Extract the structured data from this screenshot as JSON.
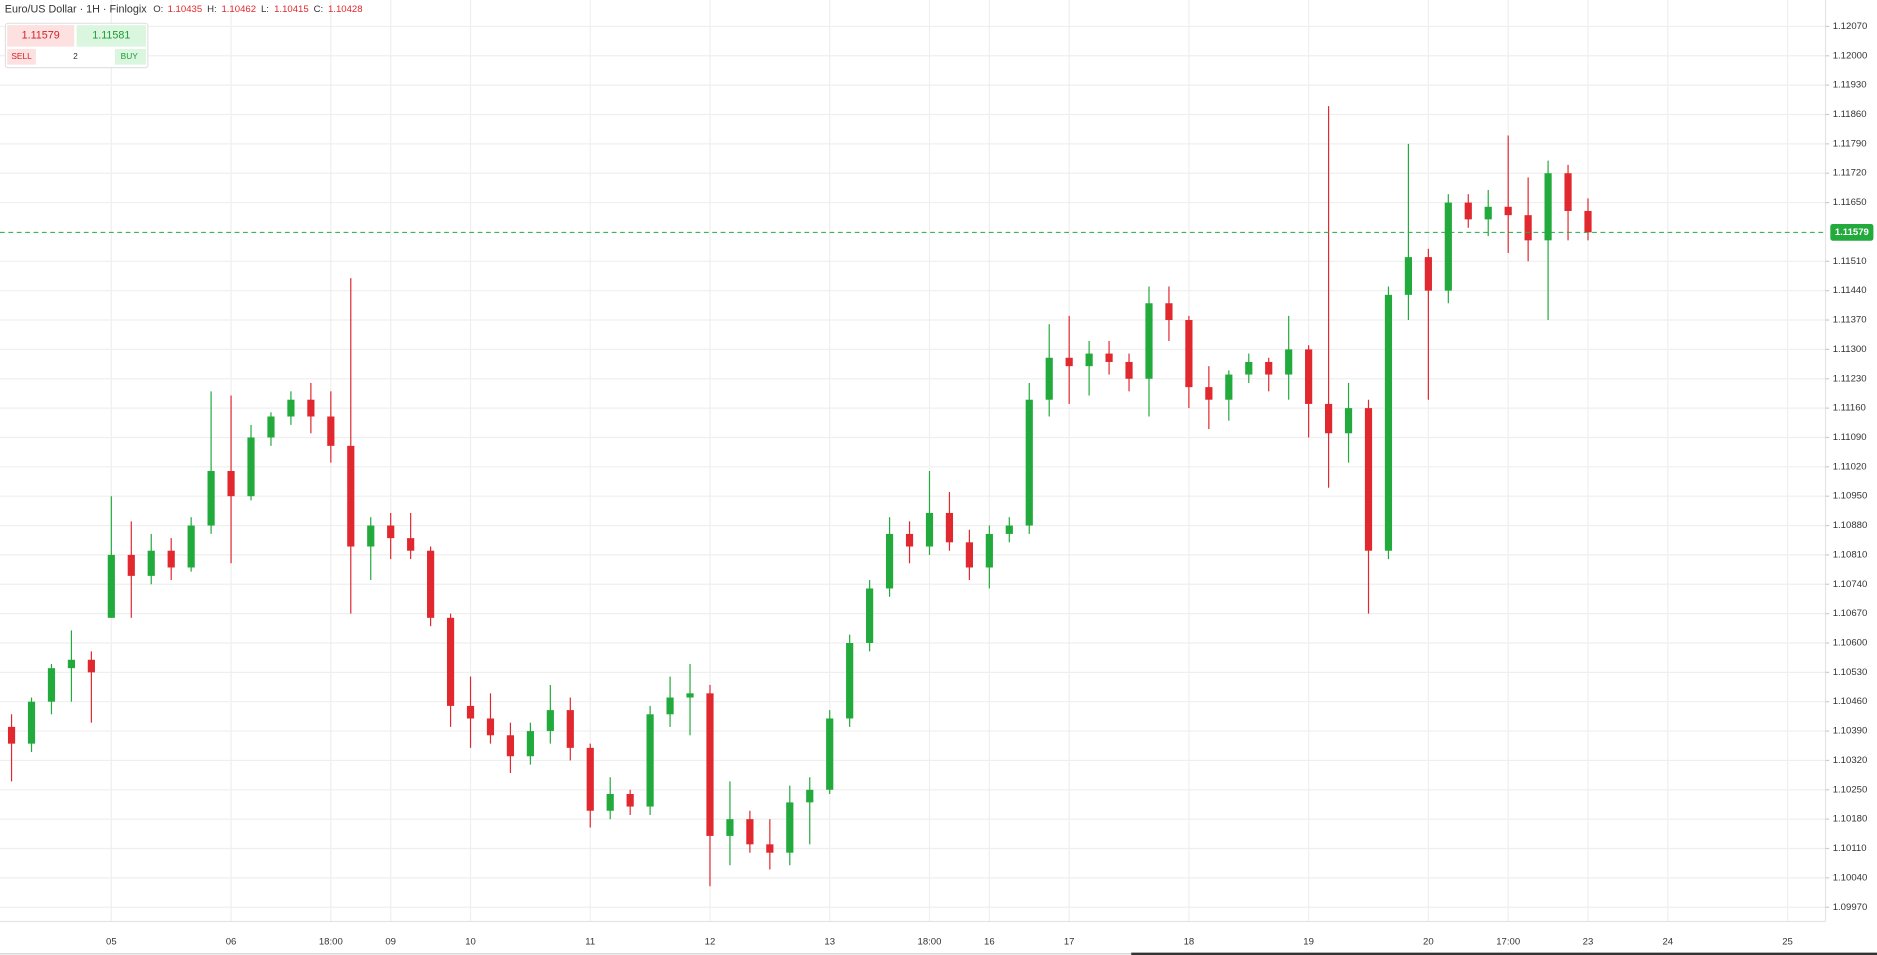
{
  "header": {
    "title": "Euro/US Dollar · 1H · Finlogix",
    "o_label": "O:",
    "o": 1.10435,
    "h_label": "H:",
    "h": 1.10462,
    "l_label": "L:",
    "l": 1.10415,
    "c_label": "C:",
    "c": 1.10428
  },
  "trade": {
    "bid": 1.11579,
    "ask": 1.11581,
    "sell": "SELL",
    "quantity": 2,
    "buy": "BUY"
  },
  "chart_data": {
    "type": "candlestick",
    "up_color": "#22ab3c",
    "down_color": "#e0282e",
    "grid": true,
    "last_price": 1.11579,
    "last_price_color": "#22ab3c",
    "categories": [
      null,
      null,
      null,
      null,
      null,
      "05",
      null,
      null,
      null,
      null,
      null,
      "06",
      null,
      null,
      null,
      null,
      "18:00",
      null,
      null,
      "09",
      null,
      null,
      null,
      "10",
      null,
      null,
      null,
      null,
      null,
      "11",
      null,
      null,
      null,
      null,
      null,
      "12",
      null,
      null,
      null,
      null,
      null,
      "13",
      null,
      null,
      null,
      null,
      "18:00",
      null,
      null,
      "16",
      null,
      null,
      null,
      "17",
      null,
      null,
      null,
      null,
      null,
      "18",
      null,
      null,
      null,
      null,
      null,
      "19",
      null,
      null,
      null,
      null,
      null,
      "20",
      null,
      null,
      null,
      "17:00",
      null,
      null,
      null,
      "23",
      null,
      null,
      null,
      "24",
      null,
      null,
      null,
      null,
      null,
      "25",
      null
    ],
    "open": [
      1.104,
      1.1036,
      1.1046,
      1.1054,
      1.1056,
      1.1066,
      1.1081,
      1.1076,
      1.1082,
      1.1078,
      1.1088,
      1.1101,
      1.1095,
      1.1109,
      1.1114,
      1.1118,
      1.1114,
      1.1107,
      1.1083,
      1.1088,
      1.1085,
      1.1082,
      1.1066,
      1.1045,
      1.1042,
      1.1038,
      1.1033,
      1.1039,
      1.1044,
      1.1035,
      1.102,
      1.1024,
      1.1021,
      1.1043,
      1.1047,
      1.1048,
      1.1014,
      1.1018,
      1.1012,
      1.101,
      1.1022,
      1.1025,
      1.1042,
      1.106,
      1.1073,
      1.1086,
      1.1083,
      1.1091,
      1.1084,
      1.1078,
      1.1086,
      1.1088,
      1.1118,
      1.1128,
      1.1126,
      1.1129,
      1.1127,
      1.1123,
      1.1141,
      1.1137,
      1.1121,
      1.1118,
      1.1124,
      1.1127,
      1.1124,
      1.113,
      1.1117,
      1.111,
      1.1116,
      1.1082,
      1.1143,
      1.1152,
      1.1144,
      1.1165,
      1.1161,
      1.1164,
      1.1162,
      1.1156,
      1.1172,
      1.1163,
      null,
      null,
      null,
      null,
      null,
      null,
      null,
      null,
      null,
      null,
      null
    ],
    "high": [
      1.1043,
      1.1047,
      1.1055,
      1.1063,
      1.1058,
      1.1095,
      1.1089,
      1.1086,
      1.1085,
      1.109,
      1.112,
      1.1119,
      1.1112,
      1.1115,
      1.112,
      1.1122,
      1.112,
      1.1147,
      1.109,
      1.1091,
      1.1091,
      1.1083,
      1.1067,
      1.1052,
      1.1048,
      1.1041,
      1.1041,
      1.105,
      1.1047,
      1.1036,
      1.1028,
      1.1025,
      1.1045,
      1.1052,
      1.1055,
      1.105,
      1.1027,
      1.102,
      1.1018,
      1.1026,
      1.1028,
      1.1044,
      1.1062,
      1.1075,
      1.109,
      1.1089,
      1.1101,
      1.1096,
      1.1087,
      1.1088,
      1.109,
      1.1122,
      1.1136,
      1.1138,
      1.1132,
      1.1132,
      1.1129,
      1.1145,
      1.1145,
      1.1138,
      1.1126,
      1.1125,
      1.1129,
      1.1128,
      1.1138,
      1.1131,
      1.1188,
      1.1122,
      1.1118,
      1.1145,
      1.1179,
      1.1154,
      1.1167,
      1.1167,
      1.1168,
      1.1181,
      1.1171,
      1.1175,
      1.1174,
      1.1166,
      null,
      null,
      null,
      null,
      null,
      null,
      null,
      null,
      null,
      null,
      null
    ],
    "low": [
      1.1027,
      1.1034,
      1.1043,
      1.1046,
      1.1041,
      1.1066,
      1.1066,
      1.1074,
      1.1075,
      1.1077,
      1.1086,
      1.1079,
      1.1094,
      1.1107,
      1.1112,
      1.111,
      1.1103,
      1.1067,
      1.1075,
      1.108,
      1.108,
      1.1064,
      1.104,
      1.1035,
      1.1036,
      1.1029,
      1.1031,
      1.1036,
      1.1032,
      1.1016,
      1.1018,
      1.1019,
      1.1019,
      1.104,
      1.1038,
      1.1002,
      1.1007,
      1.101,
      1.1006,
      1.1007,
      1.1012,
      1.1024,
      1.104,
      1.1058,
      1.1071,
      1.1079,
      1.1081,
      1.1082,
      1.1075,
      1.1073,
      1.1084,
      1.1086,
      1.1114,
      1.1117,
      1.1119,
      1.1124,
      1.112,
      1.1114,
      1.1132,
      1.1116,
      1.1111,
      1.1113,
      1.1122,
      1.112,
      1.1118,
      1.1109,
      1.1097,
      1.1103,
      1.1067,
      1.108,
      1.1137,
      1.1118,
      1.1141,
      1.1159,
      1.1157,
      1.1153,
      1.1151,
      1.1137,
      1.1156,
      1.1156,
      null,
      null,
      null,
      null,
      null,
      null,
      null,
      null,
      null,
      null,
      null
    ],
    "close": [
      1.1036,
      1.1046,
      1.1054,
      1.1056,
      1.1053,
      1.1081,
      1.1076,
      1.1082,
      1.1078,
      1.1088,
      1.1101,
      1.1095,
      1.1109,
      1.1114,
      1.1118,
      1.1114,
      1.1107,
      1.1083,
      1.1088,
      1.1085,
      1.1082,
      1.1066,
      1.1045,
      1.1042,
      1.1038,
      1.1033,
      1.1039,
      1.1044,
      1.1035,
      1.102,
      1.1024,
      1.1021,
      1.1043,
      1.1047,
      1.1048,
      1.1014,
      1.1018,
      1.1012,
      1.101,
      1.1022,
      1.1025,
      1.1042,
      1.106,
      1.1073,
      1.1086,
      1.1083,
      1.1091,
      1.1084,
      1.1078,
      1.1086,
      1.1088,
      1.1118,
      1.1128,
      1.1126,
      1.1129,
      1.1127,
      1.1123,
      1.1141,
      1.1137,
      1.1121,
      1.1118,
      1.1124,
      1.1127,
      1.1124,
      1.113,
      1.1117,
      1.111,
      1.1116,
      1.1082,
      1.1143,
      1.1152,
      1.1144,
      1.1165,
      1.1161,
      1.1164,
      1.1162,
      1.1156,
      1.1172,
      1.1163,
      1.11579,
      null,
      null,
      null,
      null,
      null,
      null,
      null,
      null,
      null,
      null,
      null
    ],
    "ylim": [
      1.09936,
      1.12133
    ],
    "yticks": [
      {
        "value": 1.0997,
        "label": "1.09970"
      },
      {
        "value": 1.1004,
        "label": "1.10040"
      },
      {
        "value": 1.1011,
        "label": "1.10110"
      },
      {
        "value": 1.1018,
        "label": "1.10180"
      },
      {
        "value": 1.1025,
        "label": "1.10250"
      },
      {
        "value": 1.1032,
        "label": "1.10320"
      },
      {
        "value": 1.1039,
        "label": "1.10390"
      },
      {
        "value": 1.1046,
        "label": "1.10460"
      },
      {
        "value": 1.1053,
        "label": "1.10530"
      },
      {
        "value": 1.106,
        "label": "1.10600"
      },
      {
        "value": 1.1067,
        "label": "1.10670"
      },
      {
        "value": 1.1074,
        "label": "1.10740"
      },
      {
        "value": 1.1081,
        "label": "1.10810"
      },
      {
        "value": 1.1088,
        "label": "1.10880"
      },
      {
        "value": 1.1095,
        "label": "1.10950"
      },
      {
        "value": 1.1102,
        "label": "1.11020"
      },
      {
        "value": 1.1109,
        "label": "1.11090"
      },
      {
        "value": 1.1116,
        "label": "1.11160"
      },
      {
        "value": 1.1123,
        "label": "1.11230"
      },
      {
        "value": 1.113,
        "label": "1.11300"
      },
      {
        "value": 1.1137,
        "label": "1.11370"
      },
      {
        "value": 1.1144,
        "label": "1.11440"
      },
      {
        "value": 1.1151,
        "label": "1.11510"
      },
      {
        "value": 1.1165,
        "label": "1.11650"
      },
      {
        "value": 1.1172,
        "label": "1.11720"
      },
      {
        "value": 1.1179,
        "label": "1.11790"
      },
      {
        "value": 1.1186,
        "label": "1.11860"
      },
      {
        "value": 1.1193,
        "label": "1.11930"
      },
      {
        "value": 1.12,
        "label": "1.12000"
      },
      {
        "value": 1.1207,
        "label": "1.12070"
      }
    ]
  }
}
